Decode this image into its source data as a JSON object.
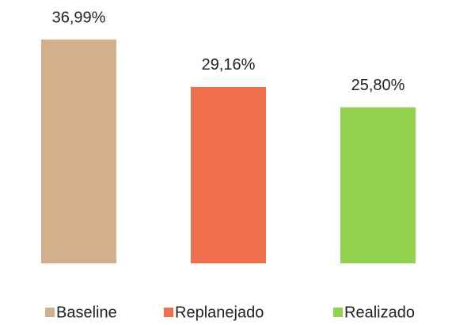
{
  "chart_data": {
    "type": "bar",
    "categories": [
      null
    ],
    "series": [
      {
        "name": "Baseline",
        "color": "#d2b08e",
        "values": [
          36.99
        ],
        "value_labels": [
          "36,99%"
        ]
      },
      {
        "name": "Replanejado",
        "color": "#ef6f4a",
        "values": [
          29.16
        ],
        "value_labels": [
          "29,16%"
        ]
      },
      {
        "name": "Realizado",
        "color": "#92d050",
        "values": [
          25.8
        ],
        "value_labels": [
          "25,80%"
        ]
      }
    ]
  }
}
